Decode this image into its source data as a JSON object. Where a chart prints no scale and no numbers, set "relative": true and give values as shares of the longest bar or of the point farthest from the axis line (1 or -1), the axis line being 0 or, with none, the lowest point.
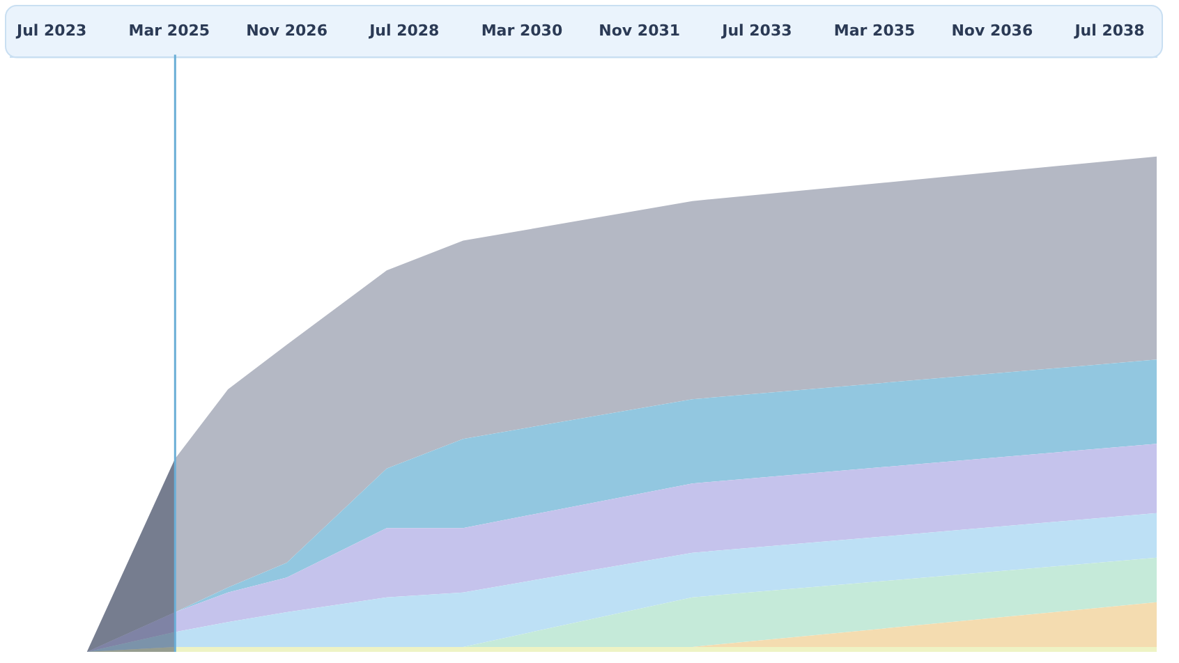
{
  "chart_data": {
    "type": "area",
    "stacked": true,
    "relative": true,
    "grid": false,
    "legend": false,
    "marker": "none",
    "x": [
      "2024-01",
      "2025-04",
      "2026-01",
      "2026-11",
      "2028-04",
      "2029-05",
      "2032-08",
      "2039-03"
    ],
    "xlim": [
      "2022-12",
      "2039-03"
    ],
    "xticks": [
      {
        "value": "2023-07",
        "label": "Jul 2023"
      },
      {
        "value": "2025-03",
        "label": "Mar 2025"
      },
      {
        "value": "2026-11",
        "label": "Nov 2026"
      },
      {
        "value": "2028-07",
        "label": "Jul 2028"
      },
      {
        "value": "2030-03",
        "label": "Mar 2030"
      },
      {
        "value": "2031-11",
        "label": "Nov 2031"
      },
      {
        "value": "2033-07",
        "label": "Jul 2033"
      },
      {
        "value": "2035-03",
        "label": "Mar 2035"
      },
      {
        "value": "2036-11",
        "label": "Nov 2036"
      },
      {
        "value": "2038-07",
        "label": "Jul 2038"
      }
    ],
    "series": [
      {
        "color": "#eef3c4",
        "values": [
          0,
          0.01,
          0.01,
          0.01,
          0.01,
          0.01,
          0.01,
          0.01
        ]
      },
      {
        "color": "#f4dcb0",
        "values": [
          0,
          0,
          0,
          0,
          0,
          0,
          0,
          0.09
        ]
      },
      {
        "color": "#c5ead9",
        "values": [
          0,
          0,
          0,
          0,
          0,
          0,
          0.1,
          0.09
        ]
      },
      {
        "color": "#bde0f5",
        "values": [
          0,
          0.03,
          0.05,
          0.07,
          0.1,
          0.11,
          0.09,
          0.09
        ]
      },
      {
        "color": "#c5c3ec",
        "values": [
          0,
          0.04,
          0.06,
          0.07,
          0.14,
          0.13,
          0.14,
          0.14
        ]
      },
      {
        "color": "#92c7e0",
        "values": [
          0,
          0,
          0.01,
          0.03,
          0.12,
          0.18,
          0.17,
          0.17
        ]
      },
      {
        "color": "#b4b8c4",
        "values": [
          0,
          0.31,
          0.4,
          0.44,
          0.4,
          0.4,
          0.4,
          0.41
        ]
      }
    ],
    "ref_lines": [
      {
        "axis": "x",
        "value": "2025-04",
        "color": "#6aaed6"
      }
    ],
    "bands": [
      {
        "axis": "x",
        "from": "2022-12",
        "to": "2025-04",
        "color": "#2a3550"
      }
    ]
  }
}
